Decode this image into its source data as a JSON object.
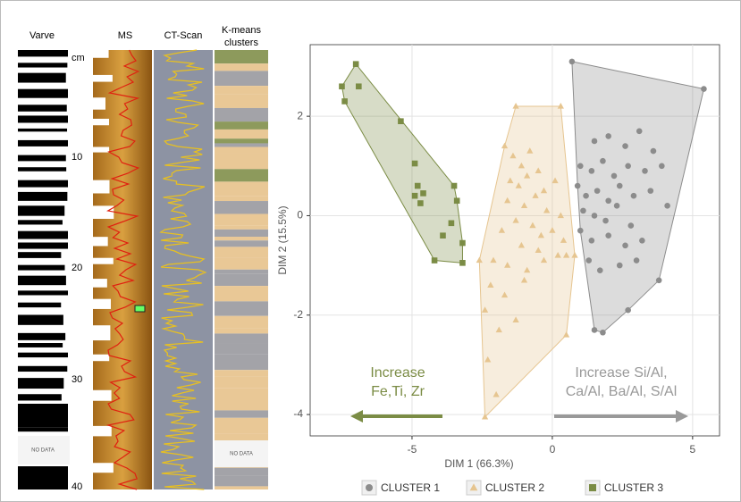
{
  "core_panel": {
    "headers": [
      "Varve",
      "MS",
      "CT-Scan",
      "K-means clusters"
    ],
    "depth_labels": [
      "cm",
      "10",
      "20",
      "30",
      "40"
    ],
    "no_data_labels": [
      "NO DATA",
      "NO DATA"
    ]
  },
  "chart_data": {
    "type": "scatter",
    "x_label": "DIM 1 (66.3%)",
    "y_label": "DIM 2 (15.5%)",
    "xlim": [
      -8.63,
      5.96
    ],
    "ylim": [
      -4.43,
      3.44
    ],
    "xticks": [
      -5,
      0,
      5
    ],
    "yticks": [
      -4,
      -2,
      0,
      2
    ],
    "grid": true,
    "series": [
      {
        "name": "CLUSTER 1",
        "color": "#8c8c8c",
        "marker": "circle",
        "x": [
          0.7,
          5.4,
          1.5,
          2.0,
          2.6,
          3.1,
          3.6,
          1.0,
          1.4,
          1.8,
          2.2,
          2.7,
          3.3,
          3.9,
          0.9,
          1.2,
          1.6,
          2.0,
          2.4,
          2.9,
          3.5,
          4.1,
          1.1,
          1.5,
          1.9,
          2.3,
          2.8,
          1.0,
          1.4,
          2.0,
          2.6,
          3.2,
          1.3,
          1.7,
          2.4,
          3.0,
          3.8,
          1.5,
          1.8,
          2.7
        ],
        "y": [
          3.1,
          2.55,
          1.5,
          1.6,
          1.4,
          1.7,
          1.3,
          1.0,
          0.9,
          1.1,
          0.8,
          1.0,
          0.9,
          1.0,
          0.6,
          0.4,
          0.5,
          0.3,
          0.6,
          0.4,
          0.5,
          0.2,
          0.1,
          0.0,
          -0.1,
          0.2,
          -0.2,
          -0.3,
          -0.5,
          -0.4,
          -0.6,
          -0.5,
          -0.9,
          -1.1,
          -1.0,
          -0.9,
          -1.3,
          -2.3,
          -2.35,
          -1.9
        ]
      },
      {
        "name": "CLUSTER 2",
        "color": "#e6c590",
        "marker": "triangle",
        "x": [
          -1.3,
          0.3,
          -1.7,
          -1.4,
          -1.1,
          -0.8,
          -0.5,
          -1.5,
          -1.2,
          -0.9,
          -0.3,
          0.1,
          -1.6,
          -1.0,
          -0.6,
          -0.2,
          0.3,
          -1.3,
          -0.7,
          -0.4,
          0.0,
          0.4,
          -1.8,
          -1.1,
          -0.5,
          0.2,
          -2.1,
          -1.6,
          -0.9,
          -0.3,
          0.5,
          -2.6,
          -2.2,
          -1.7,
          -1.0,
          0.8,
          -2.4,
          -1.9,
          -1.3,
          -2.3,
          0.5,
          -2.0,
          -2.4
        ],
        "y": [
          2.2,
          2.2,
          1.4,
          1.2,
          1.0,
          1.3,
          0.9,
          0.7,
          0.6,
          0.8,
          0.5,
          0.7,
          0.3,
          0.2,
          0.4,
          0.1,
          0.0,
          -0.1,
          -0.2,
          -0.4,
          -0.3,
          -0.5,
          -0.3,
          -0.6,
          -0.7,
          -0.8,
          -0.9,
          -1.0,
          -1.1,
          -0.9,
          -0.8,
          -0.9,
          -1.4,
          -1.6,
          -1.3,
          -0.8,
          -1.9,
          -2.3,
          -2.1,
          -2.9,
          -2.4,
          -3.6,
          -4.05
        ]
      },
      {
        "name": "CLUSTER 3",
        "color": "#7b8c45",
        "marker": "square",
        "x": [
          -7.0,
          -7.5,
          -7.4,
          -6.9,
          -5.4,
          -4.9,
          -4.8,
          -4.9,
          -4.7,
          -4.6,
          -3.5,
          -3.4,
          -3.6,
          -3.9,
          -3.2,
          -4.2,
          -3.2
        ],
        "y": [
          3.05,
          2.6,
          2.3,
          2.6,
          1.9,
          1.05,
          0.6,
          0.4,
          0.25,
          0.45,
          0.6,
          0.3,
          -0.15,
          -0.4,
          -0.55,
          -0.9,
          -0.95
        ]
      }
    ],
    "annotations": [
      {
        "lines": [
          "Increase",
          "Fe,Ti, Zr"
        ]
      },
      {
        "lines": [
          "Increase Si/Al,",
          "Ca/Al, Ba/Al, S/Al"
        ]
      }
    ]
  }
}
